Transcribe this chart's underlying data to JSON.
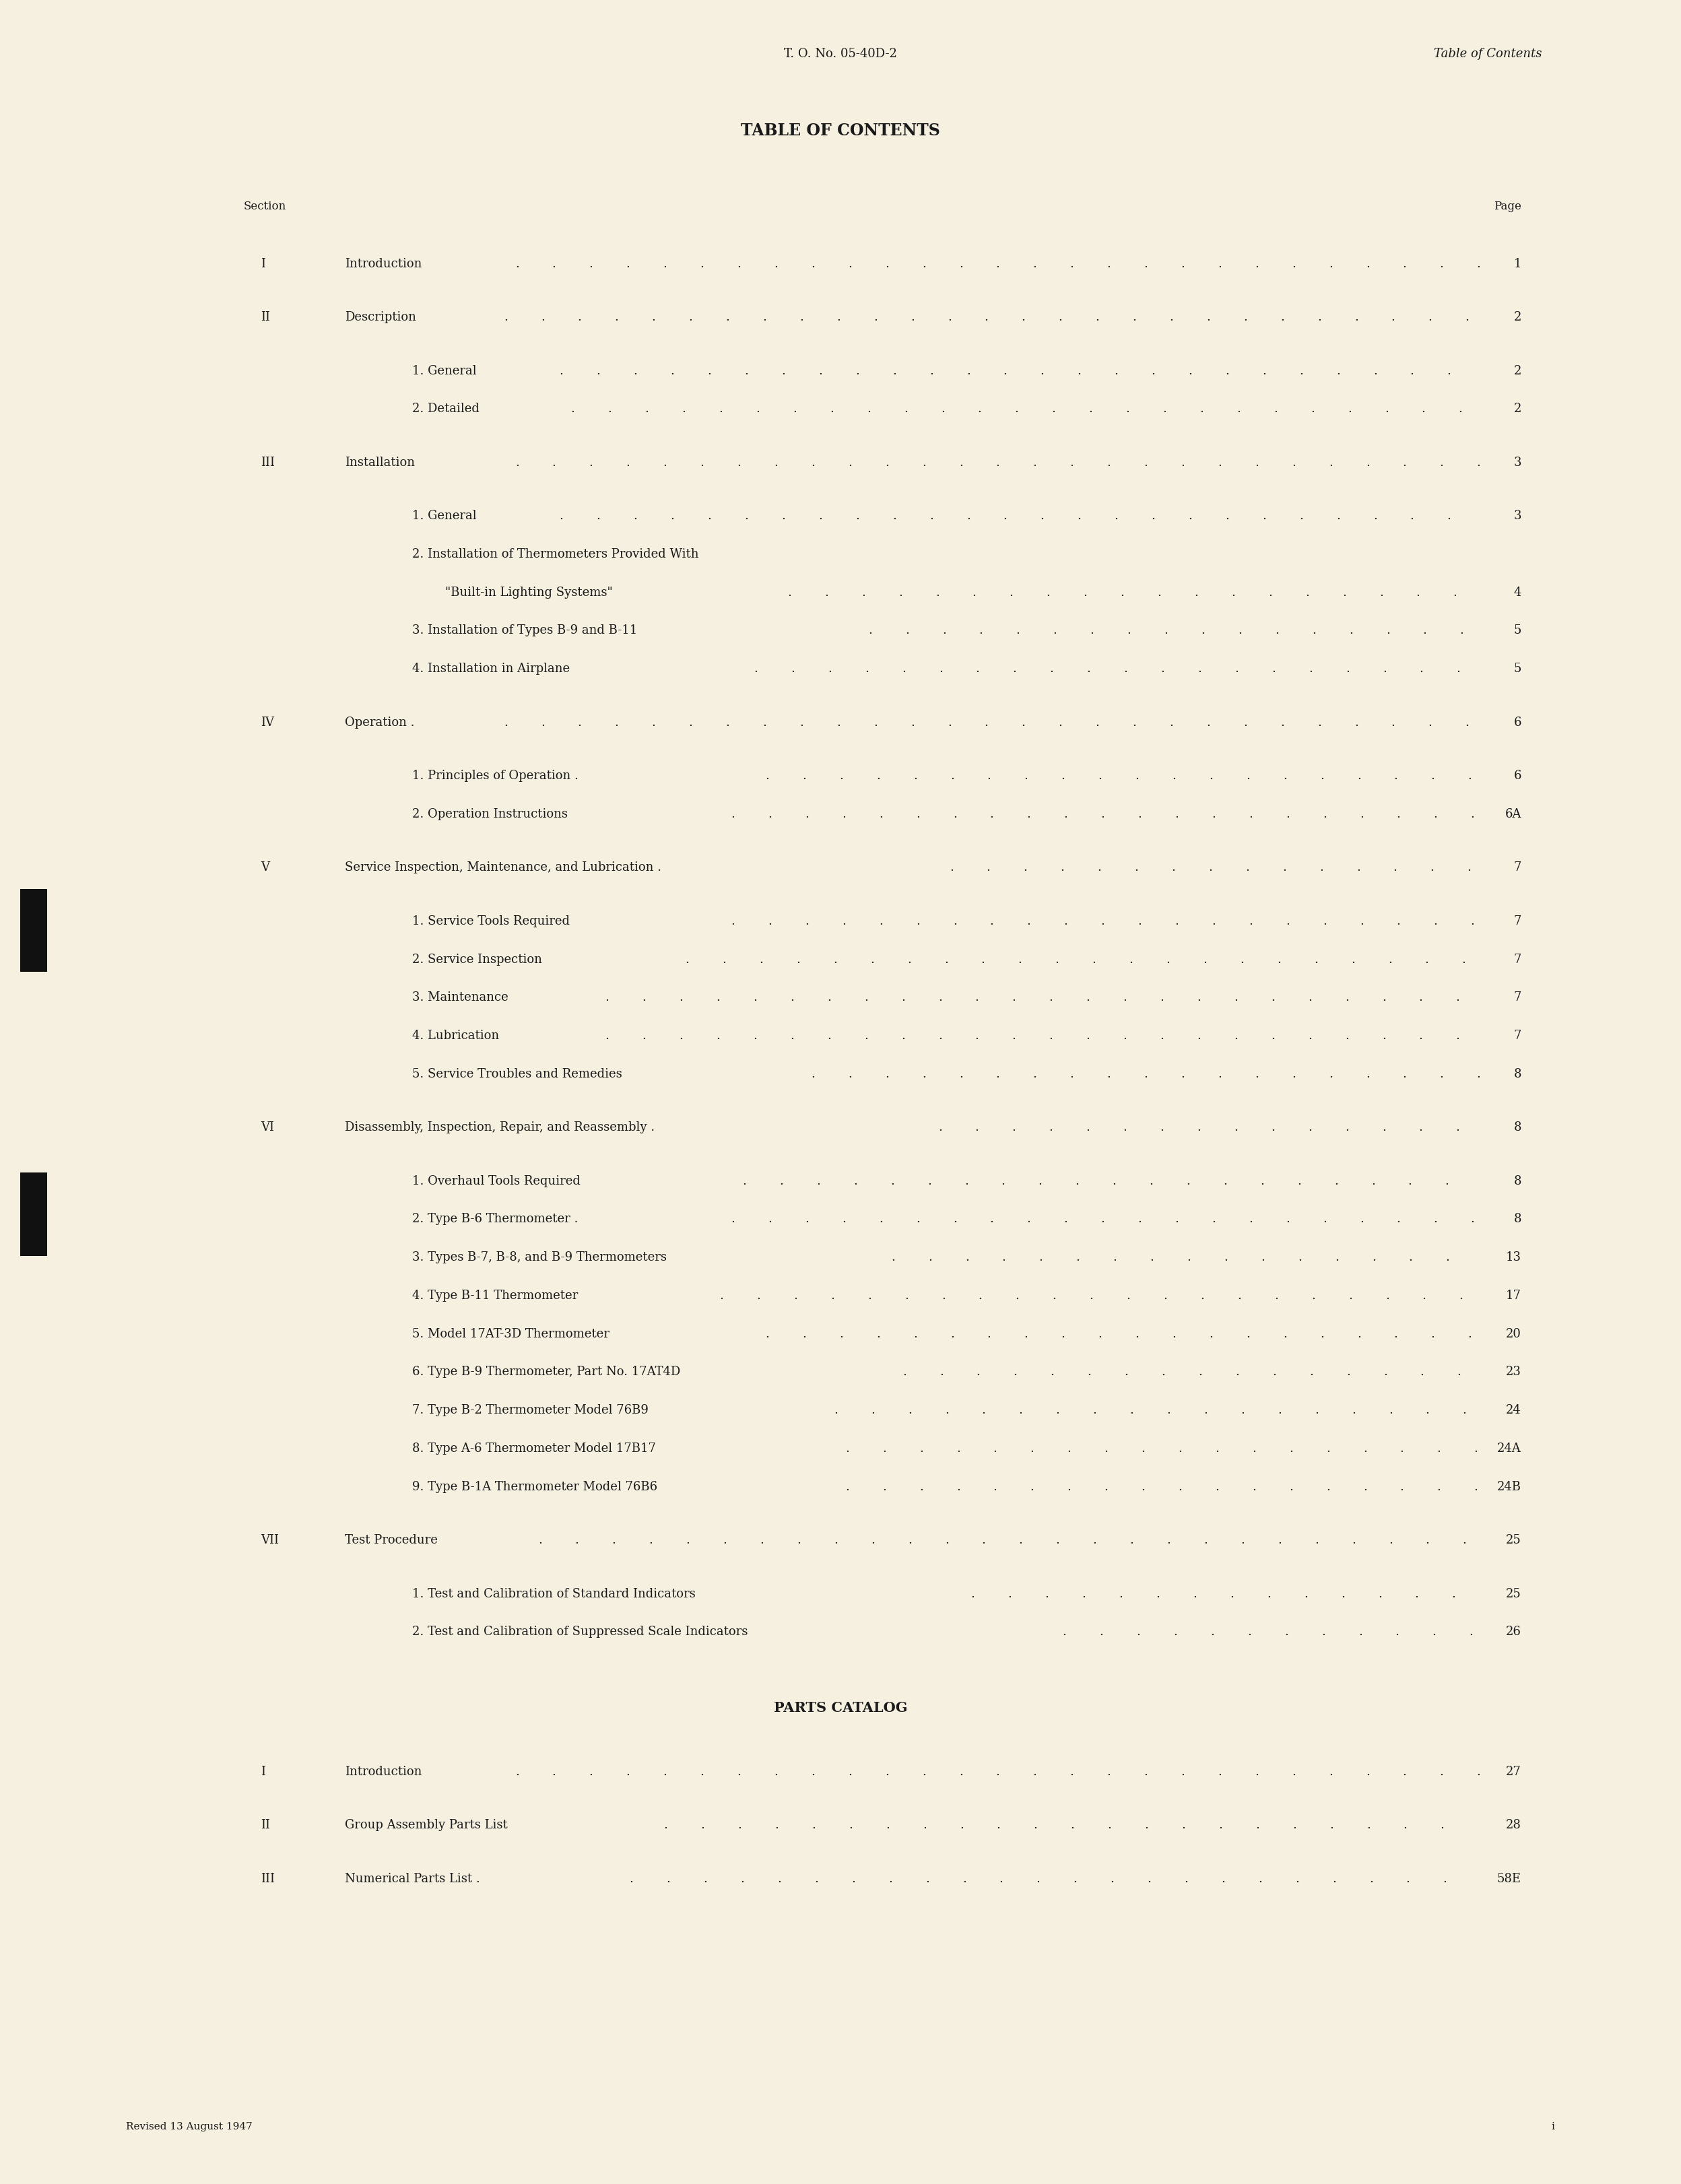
{
  "bg_color": "#f5f0e0",
  "text_color": "#1a1a1a",
  "header_left": "T. O. No. 05-40D-2",
  "header_right": "Table of Contents",
  "main_title": "TABLE OF CONTENTS",
  "section_label": "Section",
  "page_label": "Page",
  "footer_left": "Revised 13 August 1947",
  "footer_right": "i",
  "entries": [
    {
      "section": "I",
      "indent": 0,
      "text": "Introduction",
      "dots": true,
      "page": "1",
      "extra_space": true
    },
    {
      "section": "II",
      "indent": 0,
      "text": "Description",
      "dots": true,
      "page": "2",
      "extra_space": true
    },
    {
      "section": "",
      "indent": 1,
      "text": "1. General",
      "dots": true,
      "page": "2",
      "extra_space": false
    },
    {
      "section": "",
      "indent": 1,
      "text": "2. Detailed",
      "dots": true,
      "page": "2",
      "extra_space": true
    },
    {
      "section": "III",
      "indent": 0,
      "text": "Installation",
      "dots": true,
      "page": "3",
      "extra_space": true
    },
    {
      "section": "",
      "indent": 1,
      "text": "1. General",
      "dots": true,
      "page": "3",
      "extra_space": false
    },
    {
      "section": "",
      "indent": 1,
      "text": "2. Installation of Thermometers Provided With",
      "dots": false,
      "page": "",
      "extra_space": false
    },
    {
      "section": "",
      "indent": 2,
      "text": "\"Built-in Lighting Systems\"",
      "dots": true,
      "page": "4",
      "extra_space": false
    },
    {
      "section": "",
      "indent": 1,
      "text": "3. Installation of Types B-9 and B-11",
      "dots": true,
      "page": "5",
      "extra_space": false
    },
    {
      "section": "",
      "indent": 1,
      "text": "4. Installation in Airplane",
      "dots": true,
      "page": "5",
      "extra_space": true
    },
    {
      "section": "IV",
      "indent": 0,
      "text": "Operation .",
      "dots": true,
      "page": "6",
      "extra_space": true
    },
    {
      "section": "",
      "indent": 1,
      "text": "1. Principles of Operation .",
      "dots": true,
      "page": "6",
      "extra_space": false
    },
    {
      "section": "",
      "indent": 1,
      "text": "2. Operation Instructions",
      "dots": true,
      "page": "6A",
      "extra_space": true
    },
    {
      "section": "V",
      "indent": 0,
      "text": "Service Inspection, Maintenance, and Lubrication .",
      "dots": true,
      "page": "7",
      "extra_space": true
    },
    {
      "section": "",
      "indent": 1,
      "text": "1. Service Tools Required",
      "dots": true,
      "page": "7",
      "extra_space": false
    },
    {
      "section": "",
      "indent": 1,
      "text": "2. Service Inspection",
      "dots": true,
      "page": "7",
      "extra_space": false
    },
    {
      "section": "",
      "indent": 1,
      "text": "3. Maintenance",
      "dots": true,
      "page": "7",
      "extra_space": false
    },
    {
      "section": "",
      "indent": 1,
      "text": "4. Lubrication",
      "dots": true,
      "page": "7",
      "extra_space": false
    },
    {
      "section": "",
      "indent": 1,
      "text": "5. Service Troubles and Remedies",
      "dots": true,
      "page": "8",
      "extra_space": true
    },
    {
      "section": "VI",
      "indent": 0,
      "text": "Disassembly, Inspection, Repair, and Reassembly .",
      "dots": true,
      "page": "8",
      "extra_space": true
    },
    {
      "section": "",
      "indent": 1,
      "text": "1. Overhaul Tools Required",
      "dots": true,
      "page": "8",
      "extra_space": false
    },
    {
      "section": "",
      "indent": 1,
      "text": "2. Type B-6 Thermometer .",
      "dots": true,
      "page": "8",
      "extra_space": false
    },
    {
      "section": "",
      "indent": 1,
      "text": "3. Types B-7, B-8, and B-9 Thermometers",
      "dots": true,
      "page": "13",
      "extra_space": false
    },
    {
      "section": "",
      "indent": 1,
      "text": "4. Type B-11 Thermometer",
      "dots": true,
      "page": "17",
      "extra_space": false
    },
    {
      "section": "",
      "indent": 1,
      "text": "5. Model 17AT-3D Thermometer",
      "dots": true,
      "page": "20",
      "extra_space": false
    },
    {
      "section": "",
      "indent": 1,
      "text": "6. Type B-9 Thermometer, Part No. 17AT4D",
      "dots": true,
      "page": "23",
      "extra_space": false
    },
    {
      "section": "",
      "indent": 1,
      "text": "7. Type B-2 Thermometer Model 76B9",
      "dots": true,
      "page": "24",
      "extra_space": false
    },
    {
      "section": "",
      "indent": 1,
      "text": "8. Type A-6 Thermometer Model 17B17",
      "dots": true,
      "page": "24A",
      "extra_space": false
    },
    {
      "section": "",
      "indent": 1,
      "text": "9. Type B-1A Thermometer Model 76B6",
      "dots": true,
      "page": "24B",
      "extra_space": true
    },
    {
      "section": "VII",
      "indent": 0,
      "text": "Test Procedure",
      "dots": true,
      "page": "25",
      "extra_space": true
    },
    {
      "section": "",
      "indent": 1,
      "text": "1. Test and Calibration of Standard Indicators",
      "dots": true,
      "page": "25",
      "extra_space": false
    },
    {
      "section": "",
      "indent": 1,
      "text": "2. Test and Calibration of Suppressed Scale Indicators",
      "dots": true,
      "page": "26",
      "extra_space": true
    },
    {
      "section": "PARTS_CATALOG",
      "indent": -1,
      "text": "PARTS CATALOG",
      "dots": false,
      "page": "",
      "extra_space": false
    },
    {
      "section": "I",
      "indent": 0,
      "text": "Introduction",
      "dots": true,
      "page": "27",
      "extra_space": true
    },
    {
      "section": "II",
      "indent": 0,
      "text": "Group Assembly Parts List",
      "dots": true,
      "page": "28",
      "extra_space": true
    },
    {
      "section": "III",
      "indent": 0,
      "text": "Numerical Parts List .",
      "dots": true,
      "page": "58E",
      "extra_space": false
    }
  ]
}
